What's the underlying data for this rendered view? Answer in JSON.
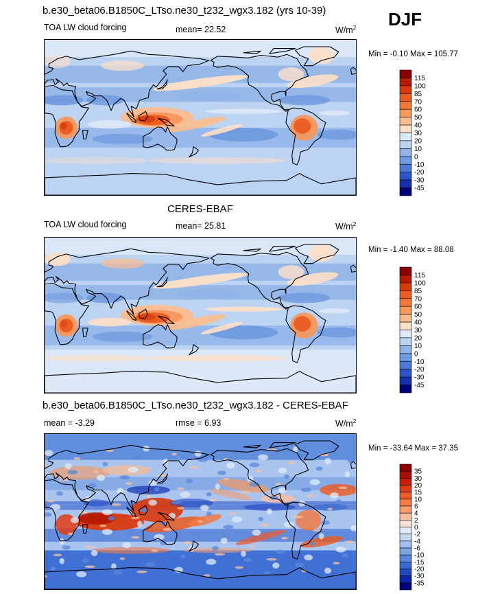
{
  "season": "DJF",
  "panels": [
    {
      "title": "b.e30_beta06.B1850C_LTso.ne30_t232_wgx3.182 (yrs 10-39)",
      "left_label": "TOA LW cloud forcing",
      "center_label": "mean=  22.52",
      "units": "W/m",
      "units_sup": "2",
      "minmax": "Min =  -0.10 Max = 105.77",
      "colorbar_levels": [
        "115",
        "100",
        "85",
        "70",
        "60",
        "50",
        "40",
        "30",
        "20",
        "10",
        "0",
        "-10",
        "-20",
        "-30",
        "-45"
      ],
      "colorbar_colors": [
        "#8b0000",
        "#b51a00",
        "#d93a0c",
        "#eb5a1e",
        "#f2783c",
        "#f7985e",
        "#fbbc8e",
        "#fde0c8",
        "#dde9f8",
        "#bcd3f2",
        "#8fb3e8",
        "#6d99df",
        "#4d7ad6",
        "#2d55c8",
        "#1432b0",
        "#00007a"
      ],
      "pattern": "model"
    },
    {
      "title": "CERES-EBAF",
      "left_label": "TOA LW cloud forcing",
      "center_label": "mean=  25.81",
      "units": "W/m",
      "units_sup": "2",
      "minmax": "Min =  -1.40 Max =  88.08",
      "colorbar_levels": [
        "115",
        "100",
        "85",
        "70",
        "60",
        "50",
        "40",
        "30",
        "20",
        "10",
        "0",
        "-10",
        "-20",
        "-30",
        "-45"
      ],
      "colorbar_colors": [
        "#8b0000",
        "#b51a00",
        "#d93a0c",
        "#eb5a1e",
        "#f2783c",
        "#f7985e",
        "#fbbc8e",
        "#fde0c8",
        "#dde9f8",
        "#bcd3f2",
        "#8fb3e8",
        "#6d99df",
        "#4d7ad6",
        "#2d55c8",
        "#1432b0",
        "#00007a"
      ],
      "pattern": "obs"
    },
    {
      "title": "b.e30_beta06.B1850C_LTso.ne30_t232_wgx3.182 - CERES-EBAF",
      "left_label": "mean =  -3.29",
      "center_label": "rmse =   6.93",
      "units": "W/m",
      "units_sup": "2",
      "minmax": "Min = -33.64 Max =  37.35",
      "colorbar_levels": [
        "35",
        "30",
        "20",
        "15",
        "10",
        "6",
        "4",
        "2",
        "0",
        "-2",
        "-4",
        "-6",
        "-10",
        "-15",
        "-20",
        "-30",
        "-35"
      ],
      "colorbar_colors": [
        "#8b0000",
        "#a80f00",
        "#c81e08",
        "#e03c14",
        "#ee5a2a",
        "#f57a48",
        "#f99c72",
        "#fbbfa0",
        "#fde2d2",
        "#e2ecfa",
        "#c4d8f4",
        "#a2c0ec",
        "#7ea5e4",
        "#5a88dc",
        "#3a6bd2",
        "#2048c2",
        "#0c26a8",
        "#00007a"
      ],
      "pattern": "diff"
    }
  ]
}
